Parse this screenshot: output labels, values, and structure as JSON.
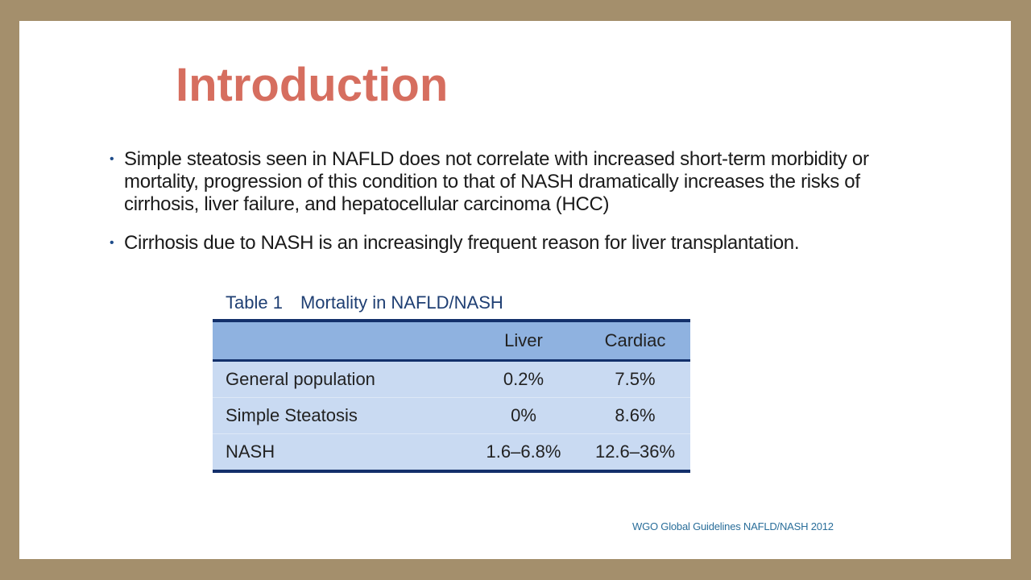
{
  "slide": {
    "title": "Introduction",
    "bullets": [
      "Simple steatosis seen in NAFLD does not correlate with increased short-term morbidity or mortality, progression of this condition to that of NASH dramatically increases the risks of cirrhosis, liver failure, and hepatocellular carcinoma (HCC)",
      "Cirrhosis due to NASH is an increasingly frequent reason for liver transplantation."
    ],
    "bullet_symbol": "•",
    "source": "WGO Global Guidelines NAFLD/NASH 2012"
  },
  "table": {
    "caption_number": "Table 1",
    "caption_text": "Mortality in NAFLD/NASH",
    "headers": [
      "",
      "Liver",
      "Cardiac"
    ],
    "rows": [
      {
        "label": "General population",
        "liver": "0.2%",
        "cardiac": "7.5%"
      },
      {
        "label": "Simple Steatosis",
        "liver": "0%",
        "cardiac": "8.6%"
      },
      {
        "label": "NASH",
        "liver": "1.6–6.8%",
        "cardiac": "12.6–36%"
      }
    ]
  },
  "colors": {
    "frame": "#a48f6c",
    "title": "#d66e5f",
    "table_header": "#8fb2e0",
    "table_body": "#c9daf2",
    "table_rule": "#13306b",
    "source_text": "#2a6e9a"
  }
}
